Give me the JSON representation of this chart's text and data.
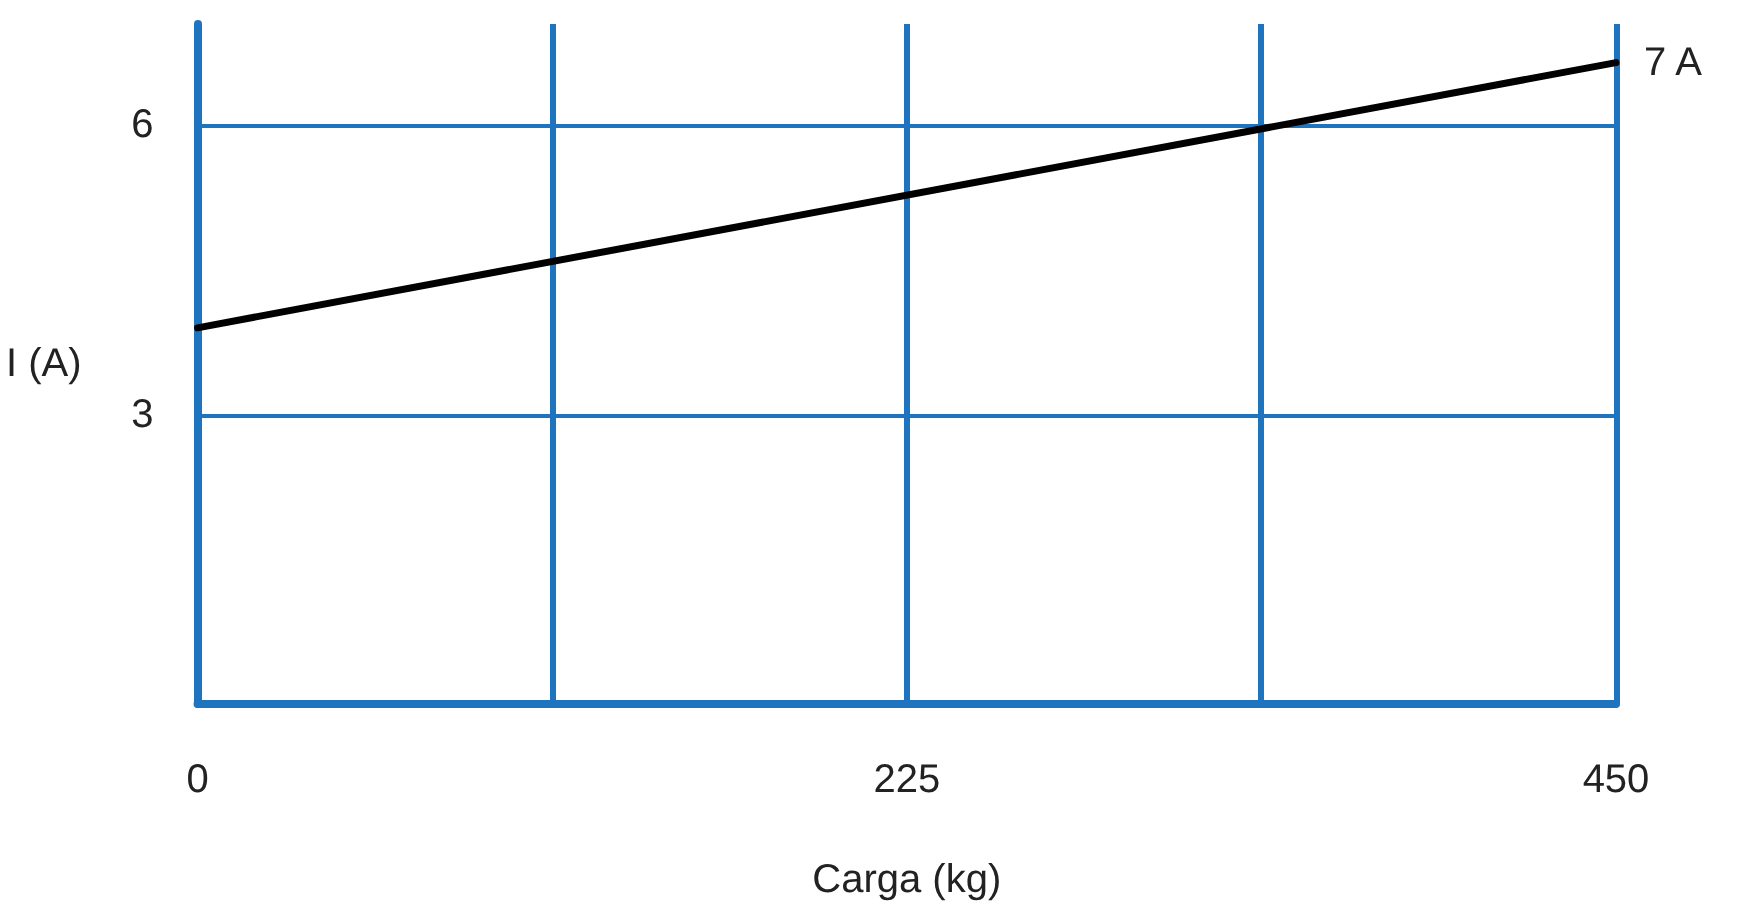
{
  "chart_data": {
    "type": "line",
    "xlabel": "Carga (kg)",
    "ylabel": "I (A)",
    "x": [
      0,
      450
    ],
    "series": [
      {
        "color": "#000000",
        "values": [
          3.9,
          6.65
        ]
      }
    ],
    "xlim": [
      0,
      450
    ],
    "xticks": [
      0,
      {
        "value": 112.5,
        "label": null
      },
      225,
      {
        "value": 337.5,
        "label": null
      },
      450
    ],
    "ylim": [
      0,
      7.05
    ],
    "yticks": [
      {
        "value": 0,
        "label": null
      },
      3,
      6
    ],
    "grid": true,
    "marker": "none",
    "line_style": "solid",
    "annotations": [
      {
        "text": "7 A",
        "x": 450,
        "y": 6.65
      }
    ]
  }
}
